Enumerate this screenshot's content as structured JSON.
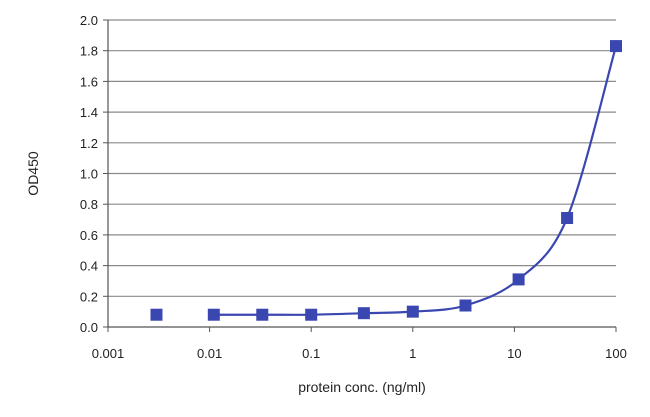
{
  "chart_data": {
    "type": "scatter",
    "title": "",
    "xlabel": "protein conc. (ng/ml)",
    "ylabel": "OD450",
    "x_scale": "log",
    "xlim": [
      0.001,
      100
    ],
    "ylim": [
      0,
      2.0
    ],
    "x_ticks": [
      "0.001",
      "0.01",
      "0.1",
      "1",
      "10",
      "100"
    ],
    "y_ticks": [
      "0.0",
      "0.2",
      "0.4",
      "0.6",
      "0.8",
      "1.0",
      "1.2",
      "1.4",
      "1.6",
      "1.8",
      "2.0"
    ],
    "grid": "horizontal",
    "legend": "none",
    "series": [
      {
        "x": [
          0.003,
          0.011,
          0.033,
          0.1,
          0.33,
          1,
          3.3,
          11,
          33,
          100
        ],
        "y": [
          0.08,
          0.08,
          0.08,
          0.08,
          0.09,
          0.1,
          0.14,
          0.31,
          0.71,
          1.83
        ],
        "marker": "square",
        "fit_line": true
      }
    ],
    "colors": {
      "series": "#3a47b0",
      "grid": "#8a8a8a",
      "axis": "#555555"
    }
  }
}
